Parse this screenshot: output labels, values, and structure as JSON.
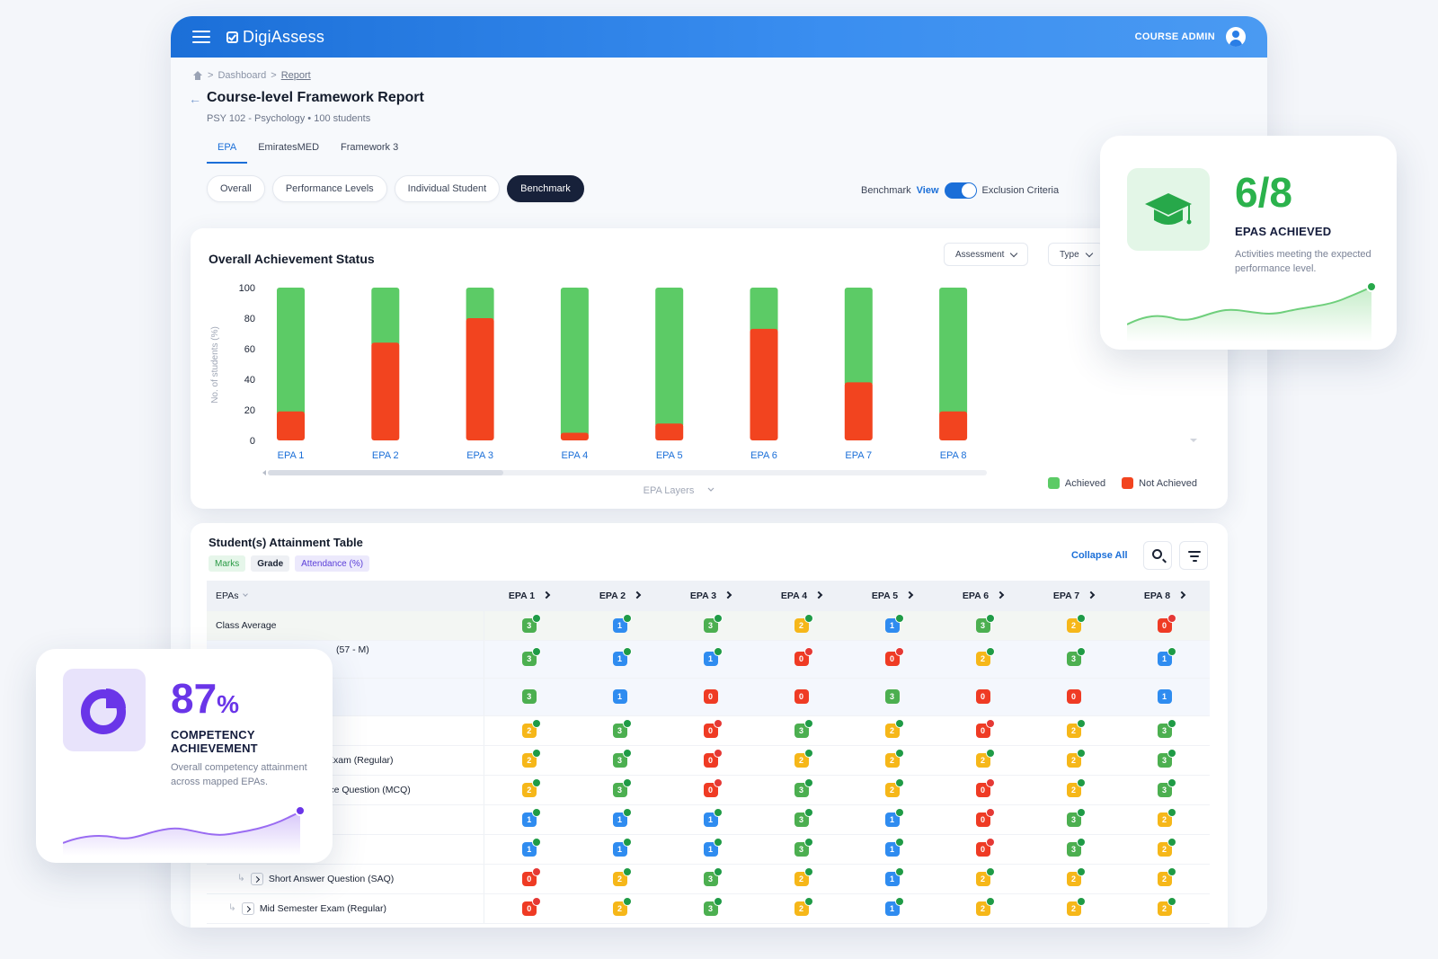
{
  "app": {
    "name": "DigiAssess",
    "user_role": "COURSE ADMIN"
  },
  "breadcrumb": {
    "home": "Dashboard",
    "current": "Report"
  },
  "page": {
    "title": "Course-level Framework Report",
    "subtitle": "PSY 102 - Psychology • 100 students"
  },
  "framework_tabs": [
    "EPA",
    "EmiratesMED",
    "Framework 3"
  ],
  "view_tabs": [
    "Overall",
    "Performance Levels",
    "Individual Student",
    "Benchmark"
  ],
  "benchmark": {
    "label": "Benchmark",
    "view": "View",
    "exclusion": "Exclusion Criteria",
    "enabled": true
  },
  "chart_card": {
    "title": "Overall Achievement Status",
    "dropdown_assessment": "Assessment",
    "dropdown_type": "Type"
  },
  "chart_data": {
    "type": "bar",
    "stacked": true,
    "title": "Overall Achievement Status",
    "xlabel": "EPA Layers",
    "ylabel": "No. of students (%)",
    "ylim": [
      0,
      100
    ],
    "yticks": [
      0,
      20,
      40,
      60,
      80,
      100
    ],
    "categories": [
      "EPA 1",
      "EPA 2",
      "EPA 3",
      "EPA 4",
      "EPA 5",
      "EPA 6",
      "EPA 7",
      "EPA 8"
    ],
    "series": [
      {
        "name": "Not Achieved",
        "color": "#f2441f",
        "values": [
          19,
          64,
          80,
          5,
          11,
          73,
          38,
          19
        ]
      },
      {
        "name": "Achieved",
        "color": "#5ccb66",
        "values": [
          81,
          36,
          20,
          95,
          89,
          27,
          62,
          81
        ]
      }
    ],
    "legend_position": "bottom-right",
    "grid": false
  },
  "table": {
    "title": "Student(s) Attainment Table",
    "chips": [
      "Marks",
      "Grade",
      "Attendance (%)"
    ],
    "collapse_all": "Collapse All",
    "first_col": "EPAs",
    "columns": [
      "EPA 1",
      "EPA 2",
      "EPA 3",
      "EPA 4",
      "EPA 5",
      "EPA 6",
      "EPA 7",
      "EPA 8"
    ],
    "rows": [
      {
        "label": "Class Average",
        "cells": [
          "g3:ok",
          "b1:ok",
          "g3:ok",
          "y2:ok",
          "b1:ok",
          "g3:ok",
          "y2:ok",
          "r0:no"
        ]
      },
      {
        "label": "(57 - M)",
        "cells": [
          "g3:ok",
          "b1:ok",
          "b1:ok",
          "r0:no",
          "r0:no",
          "y2:ok",
          "g3:ok",
          "b1:ok"
        ]
      },
      {
        "label": "",
        "cells": [
          "g3",
          "b1",
          "r0",
          "r0",
          "g3",
          "r0",
          "r0",
          "b1"
        ]
      },
      {
        "label": "s",
        "cells": [
          "y2:ok",
          "g3:ok",
          "r0:no",
          "g3:ok",
          "y2:ok",
          "r0:no",
          "y2:ok",
          "g3:ok"
        ]
      },
      {
        "label": "Exam (Regular)",
        "cells": [
          "y2:ok",
          "g3:ok",
          "r0:no",
          "y2:ok",
          "y2:ok",
          "y2:ok",
          "y2:ok",
          "g3:ok"
        ]
      },
      {
        "label": "ice Question (MCQ)",
        "cells": [
          "y2:ok",
          "g3:ok",
          "r0:no",
          "g3:ok",
          "y2:ok",
          "r0:no",
          "y2:ok",
          "g3:ok"
        ]
      },
      {
        "label": "",
        "cells": [
          "b1:ok",
          "b1:ok",
          "b1:ok",
          "g3:ok",
          "b1:ok",
          "r0:no",
          "g3:ok",
          "y2:ok"
        ]
      },
      {
        "label": "",
        "cells": [
          "b1:ok",
          "b1:ok",
          "b1:ok",
          "g3:ok",
          "b1:ok",
          "r0:no",
          "g3:ok",
          "y2:ok"
        ]
      },
      {
        "label": "Short Answer Question (SAQ)",
        "cells": [
          "r0:no",
          "y2:ok",
          "g3:ok",
          "y2:ok",
          "b1:ok",
          "y2:ok",
          "y2:ok",
          "y2:ok"
        ]
      },
      {
        "label": "Mid Semester Exam (Regular)",
        "cells": [
          "r0:no",
          "y2:ok",
          "g3:ok",
          "y2:ok",
          "b1:ok",
          "y2:ok",
          "y2:ok",
          "y2:ok"
        ]
      }
    ]
  },
  "epa_card": {
    "value": "6/8",
    "label": "EPAS ACHIEVED",
    "description": "Activities meeting the expected performance level.",
    "icon": "graduation-cap-icon",
    "color": "#2bb24c"
  },
  "competency_card": {
    "value": "87",
    "unit": "%",
    "label": "COMPETENCY ACHIEVEMENT",
    "description": "Overall competency attainment across mapped EPAs.",
    "icon": "pie-chart-icon",
    "color": "#6a35e8"
  },
  "colors": {
    "achieved": "#5ccb66",
    "not_achieved": "#f2441f",
    "accent": "#1b6fd8"
  }
}
